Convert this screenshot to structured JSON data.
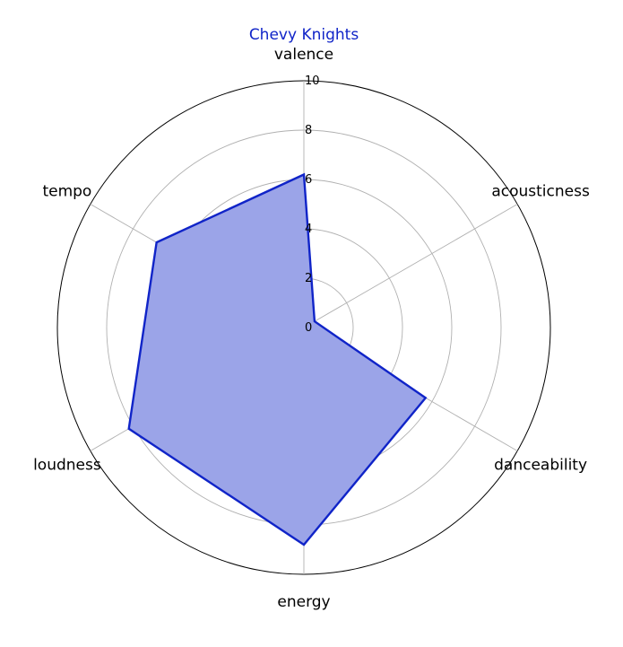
{
  "chart_data": {
    "type": "radar",
    "title": "Chevy Knights",
    "axes": [
      "valence",
      "acousticness",
      "danceability",
      "energy",
      "loudness",
      "tempo"
    ],
    "series": [
      {
        "values": [
          6.2,
          0.5,
          5.7,
          8.8,
          8.2,
          6.9
        ]
      }
    ],
    "rlim": [
      0,
      10
    ],
    "rticks": [
      0,
      2,
      4,
      6,
      8,
      10
    ],
    "grid": true,
    "colors": {
      "line": "#1024c8",
      "fill": "#9ba4e8",
      "title": "#1024c8",
      "grid": "#b0b0b0",
      "outer": "#000000"
    }
  }
}
